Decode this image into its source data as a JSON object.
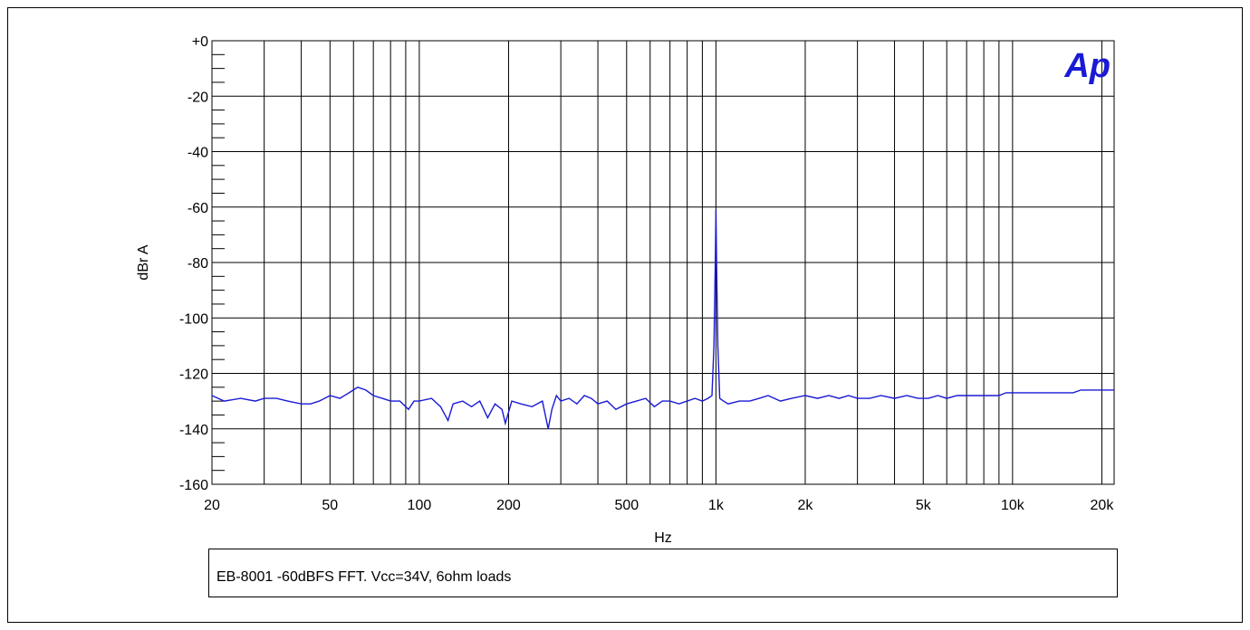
{
  "caption": "EB-8001 -60dBFS FFT. Vcc=34V, 6ohm loads",
  "logo_text": "Ap",
  "colors": {
    "trace": "#1a1ad6",
    "logo": "#1a1ad6",
    "grid": "#000000"
  },
  "chart_data": {
    "type": "line",
    "title": "",
    "xlabel": "Hz",
    "ylabel": "dBr A",
    "xscale": "log",
    "xlim": [
      20,
      22000
    ],
    "ylim": [
      -160,
      0
    ],
    "grid": true,
    "x_ticks": [
      {
        "value": 20,
        "label": "20"
      },
      {
        "value": 50,
        "label": "50"
      },
      {
        "value": 100,
        "label": "100"
      },
      {
        "value": 200,
        "label": "200"
      },
      {
        "value": 500,
        "label": "500"
      },
      {
        "value": 1000,
        "label": "1k"
      },
      {
        "value": 2000,
        "label": "2k"
      },
      {
        "value": 5000,
        "label": "5k"
      },
      {
        "value": 10000,
        "label": "10k"
      },
      {
        "value": 20000,
        "label": "20k"
      }
    ],
    "y_ticks": [
      {
        "value": 0,
        "label": "+0"
      },
      {
        "value": -20,
        "label": "-20"
      },
      {
        "value": -40,
        "label": "-40"
      },
      {
        "value": -60,
        "label": "-60"
      },
      {
        "value": -80,
        "label": "-80"
      },
      {
        "value": -100,
        "label": "-100"
      },
      {
        "value": -120,
        "label": "-120"
      },
      {
        "value": -140,
        "label": "-140"
      },
      {
        "value": -160,
        "label": "-160"
      }
    ],
    "series": [
      {
        "x": [
          20,
          22,
          25,
          28,
          30,
          33,
          36,
          40,
          43,
          46,
          50,
          54,
          58,
          62,
          66,
          70,
          75,
          80,
          86,
          92,
          96,
          100,
          110,
          118,
          125,
          130,
          140,
          150,
          160,
          170,
          180,
          190,
          195,
          205,
          220,
          240,
          260,
          272,
          280,
          290,
          300,
          320,
          340,
          360,
          380,
          400,
          430,
          460,
          500,
          540,
          580,
          620,
          660,
          700,
          750,
          800,
          850,
          900,
          940,
          970,
          985,
          995,
          1000,
          1005,
          1015,
          1030,
          1060,
          1100,
          1200,
          1300,
          1400,
          1500,
          1650,
          1800,
          2000,
          2200,
          2400,
          2600,
          2800,
          3000,
          3300,
          3600,
          4000,
          4400,
          4800,
          5200,
          5600,
          6000,
          6500,
          7000,
          7500,
          8000,
          8500,
          9000,
          9500,
          10000,
          11000,
          12000,
          13000,
          14000,
          15000,
          16000,
          17000,
          18000,
          19000,
          20000,
          21000,
          22000
        ],
        "y": [
          -128,
          -130,
          -129,
          -130,
          -129,
          -129,
          -130,
          -131,
          -131,
          -130,
          -128,
          -129,
          -127,
          -125,
          -126,
          -128,
          -129,
          -130,
          -130,
          -133,
          -130,
          -130,
          -129,
          -132,
          -137,
          -131,
          -130,
          -132,
          -130,
          -136,
          -131,
          -133,
          -138,
          -130,
          -131,
          -132,
          -130,
          -140,
          -133,
          -128,
          -130,
          -129,
          -131,
          -128,
          -129,
          -131,
          -130,
          -133,
          -131,
          -130,
          -129,
          -132,
          -130,
          -130,
          -131,
          -130,
          -129,
          -130,
          -129,
          -128,
          -110,
          -80,
          -61,
          -80,
          -110,
          -129,
          -130,
          -131,
          -130,
          -130,
          -129,
          -128,
          -130,
          -129,
          -128,
          -129,
          -128,
          -129,
          -128,
          -129,
          -129,
          -128,
          -129,
          -128,
          -129,
          -129,
          -128,
          -129,
          -128,
          -128,
          -128,
          -128,
          -128,
          -128,
          -127,
          -127,
          -127,
          -127,
          -127,
          -127,
          -127,
          -127,
          -126,
          -126,
          -126,
          -126,
          -126,
          -126
        ]
      }
    ]
  }
}
